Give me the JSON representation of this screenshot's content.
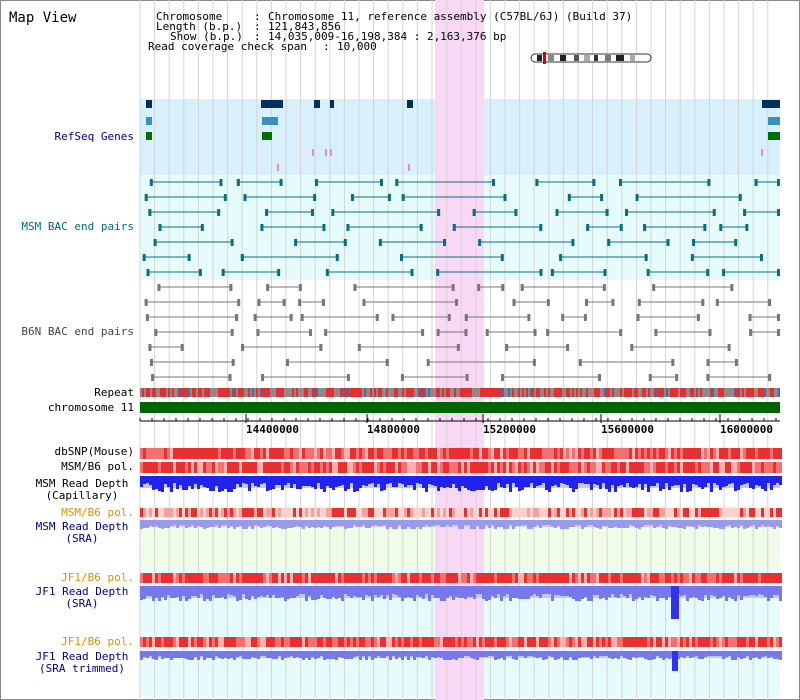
{
  "title": "Map View",
  "info": {
    "chromosome_key": "Chromosome",
    "chromosome_val": "Chromosome 11, reference assembly (C57BL/6J) (Build 37)",
    "length_key": "Length (b.p.)",
    "length_val": "121,843,856",
    "show_key": "Show (b.p.)",
    "show_val": "14,035,009-16,198,384 : 2,163,376 bp",
    "coverage_key": "Read coverage check span",
    "coverage_val": "10,000"
  },
  "tracks": {
    "refseq": "RefSeq Genes",
    "msm_bac": "MSM BAC end pairs",
    "b6n_bac": "B6N BAC end pairs",
    "repeat": "Repeat",
    "chromosome": "chromosome 11",
    "dbsnp": "dbSNP(Mouse)",
    "msm_b6_pol": "MSM/B6 pol.",
    "msm_rd_cap_1": "MSM Read Depth",
    "msm_rd_cap_2": "(Capillary)",
    "msm_b6_pol_2": "MSM/B6 pol.",
    "msm_rd_sra_1": "MSM Read Depth",
    "msm_rd_sra_2": "(SRA)",
    "jf1_b6_pol": "JF1/B6 pol.",
    "jf1_rd_sra_1": "JF1 Read Depth",
    "jf1_rd_sra_2": "(SRA)",
    "jf1_b6_pol_2": "JF1/B6 pol.",
    "jf1_rd_trim_1": "JF1 Read Depth",
    "jf1_rd_trim_2": "(SRA trimmed)"
  },
  "axis": {
    "ticks": [
      "14400000",
      "14800000",
      "15200000",
      "15600000",
      "16000000"
    ]
  },
  "colors": {
    "refseq_bg": "#d8f0fb",
    "bac_bg": "#e6fcfc",
    "highlight": "#f8d8f4",
    "chromosome_bar": "#006400",
    "snp_red": "#ee3333",
    "depth_blue": "#2222ee",
    "depth_light_blue": "#7777ee",
    "nav_label": "#000080",
    "jf1_label": "#e09000"
  }
}
